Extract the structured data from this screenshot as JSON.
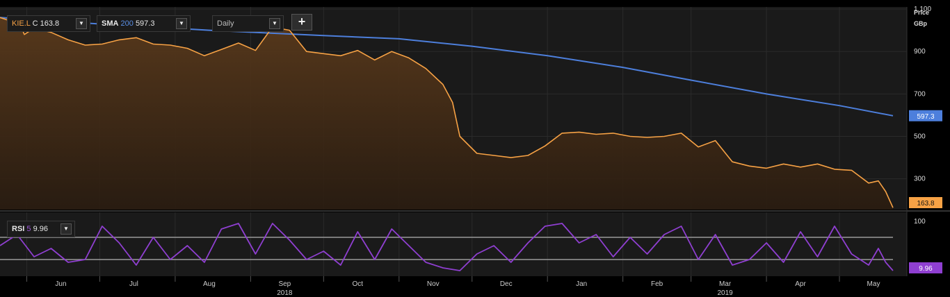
{
  "toolbar": {
    "symbol_ticker": "KIE.L",
    "symbol_close_prefix": "C",
    "symbol_close_value": "163.8",
    "sma_label": "SMA",
    "sma_period": "200",
    "sma_value": "597.3",
    "interval": "Daily",
    "add_label": "+"
  },
  "rsi_panel": {
    "label": "RSI",
    "period": "5",
    "value": "9.96"
  },
  "axis": {
    "price_title_1": "Price",
    "price_title_2": "GBp"
  },
  "colors": {
    "price_line": "#f7a245",
    "sma_line": "#4d7fdc",
    "rsi_line": "#8f3fd1",
    "background": "#1a1a1a"
  },
  "chart_data": [
    {
      "type": "line",
      "title": "",
      "ylabel": "Price GBp",
      "ylim": [
        155,
        1110
      ],
      "y_ticks": [
        1100,
        900,
        700,
        500,
        300
      ],
      "y_tick_labels": [
        "1,100",
        "900",
        "700",
        "500",
        "300"
      ],
      "x_ticks": [
        "Jun",
        "Jul",
        "Aug",
        "Sep",
        "Oct",
        "Nov",
        "Dec",
        "Jan",
        "Feb",
        "Mar",
        "Apr",
        "May"
      ],
      "x_year_labels": [
        {
          "month": "Sep",
          "year": "2018"
        },
        {
          "month": "Mar",
          "year": "2019"
        }
      ],
      "x_domain": [
        "2018-05-21",
        "2019-05-23"
      ],
      "grid": true,
      "fill_under_price": true,
      "series": [
        {
          "name": "KIE.L",
          "last_label": "163.8",
          "points": [
            [
              "2018-05-21",
              1060
            ],
            [
              "2018-05-25",
              1045
            ],
            [
              "2018-05-28",
              1062
            ],
            [
              "2018-05-31",
              980
            ],
            [
              "2018-06-04",
              1010
            ],
            [
              "2018-06-11",
              990
            ],
            [
              "2018-06-18",
              955
            ],
            [
              "2018-06-25",
              930
            ],
            [
              "2018-07-02",
              935
            ],
            [
              "2018-07-09",
              955
            ],
            [
              "2018-07-16",
              965
            ],
            [
              "2018-07-23",
              935
            ],
            [
              "2018-07-30",
              930
            ],
            [
              "2018-08-06",
              915
            ],
            [
              "2018-08-13",
              880
            ],
            [
              "2018-08-20",
              910
            ],
            [
              "2018-08-27",
              940
            ],
            [
              "2018-09-03",
              905
            ],
            [
              "2018-09-10",
              1015
            ],
            [
              "2018-09-17",
              1000
            ],
            [
              "2018-09-24",
              900
            ],
            [
              "2018-10-01",
              890
            ],
            [
              "2018-10-08",
              880
            ],
            [
              "2018-10-15",
              905
            ],
            [
              "2018-10-22",
              860
            ],
            [
              "2018-10-29",
              900
            ],
            [
              "2018-11-05",
              870
            ],
            [
              "2018-11-12",
              820
            ],
            [
              "2018-11-19",
              745
            ],
            [
              "2018-11-23",
              660
            ],
            [
              "2018-11-26",
              500
            ],
            [
              "2018-12-03",
              420
            ],
            [
              "2018-12-10",
              410
            ],
            [
              "2018-12-17",
              400
            ],
            [
              "2018-12-24",
              410
            ],
            [
              "2018-12-31",
              455
            ],
            [
              "2019-01-07",
              515
            ],
            [
              "2019-01-14",
              520
            ],
            [
              "2019-01-21",
              510
            ],
            [
              "2019-01-28",
              515
            ],
            [
              "2019-02-04",
              500
            ],
            [
              "2019-02-11",
              495
            ],
            [
              "2019-02-18",
              500
            ],
            [
              "2019-02-25",
              515
            ],
            [
              "2019-03-04",
              450
            ],
            [
              "2019-03-11",
              480
            ],
            [
              "2019-03-18",
              380
            ],
            [
              "2019-03-25",
              360
            ],
            [
              "2019-04-01",
              350
            ],
            [
              "2019-04-08",
              370
            ],
            [
              "2019-04-15",
              355
            ],
            [
              "2019-04-22",
              370
            ],
            [
              "2019-04-29",
              345
            ],
            [
              "2019-05-06",
              340
            ],
            [
              "2019-05-13",
              280
            ],
            [
              "2019-05-17",
              290
            ],
            [
              "2019-05-20",
              240
            ],
            [
              "2019-05-23",
              163.8
            ]
          ]
        },
        {
          "name": "SMA 200",
          "last_label": "597.3",
          "points": [
            [
              "2018-05-21",
              1060
            ],
            [
              "2018-07-01",
              1030
            ],
            [
              "2018-08-15",
              1000
            ],
            [
              "2018-10-01",
              975
            ],
            [
              "2018-11-01",
              960
            ],
            [
              "2018-12-01",
              925
            ],
            [
              "2019-01-01",
              880
            ],
            [
              "2019-02-01",
              825
            ],
            [
              "2019-03-01",
              765
            ],
            [
              "2019-04-01",
              700
            ],
            [
              "2019-05-01",
              645
            ],
            [
              "2019-05-23",
              597.3
            ]
          ]
        }
      ]
    },
    {
      "type": "line",
      "title": "",
      "ylabel": "RSI",
      "ylim": [
        0,
        115
      ],
      "y_ticks": [
        100
      ],
      "y_tick_labels": [
        "100"
      ],
      "reference_lines": [
        70,
        30
      ],
      "series": [
        {
          "name": "RSI 5",
          "last_label": "9.96",
          "points": [
            [
              "2018-05-21",
              55
            ],
            [
              "2018-05-28",
              75
            ],
            [
              "2018-06-04",
              35
            ],
            [
              "2018-06-11",
              50
            ],
            [
              "2018-06-18",
              25
            ],
            [
              "2018-06-25",
              30
            ],
            [
              "2018-07-02",
              90
            ],
            [
              "2018-07-09",
              60
            ],
            [
              "2018-07-16",
              20
            ],
            [
              "2018-07-23",
              70
            ],
            [
              "2018-07-30",
              30
            ],
            [
              "2018-08-06",
              55
            ],
            [
              "2018-08-13",
              25
            ],
            [
              "2018-08-20",
              85
            ],
            [
              "2018-08-27",
              95
            ],
            [
              "2018-09-03",
              40
            ],
            [
              "2018-09-10",
              95
            ],
            [
              "2018-09-17",
              65
            ],
            [
              "2018-09-24",
              30
            ],
            [
              "2018-10-01",
              45
            ],
            [
              "2018-10-08",
              20
            ],
            [
              "2018-10-15",
              80
            ],
            [
              "2018-10-22",
              30
            ],
            [
              "2018-10-29",
              85
            ],
            [
              "2018-11-05",
              55
            ],
            [
              "2018-11-12",
              25
            ],
            [
              "2018-11-19",
              15
            ],
            [
              "2018-11-26",
              10
            ],
            [
              "2018-12-03",
              40
            ],
            [
              "2018-12-10",
              55
            ],
            [
              "2018-12-17",
              25
            ],
            [
              "2018-12-24",
              60
            ],
            [
              "2018-12-31",
              90
            ],
            [
              "2019-01-07",
              95
            ],
            [
              "2019-01-14",
              60
            ],
            [
              "2019-01-21",
              75
            ],
            [
              "2019-01-28",
              35
            ],
            [
              "2019-02-04",
              70
            ],
            [
              "2019-02-11",
              40
            ],
            [
              "2019-02-18",
              75
            ],
            [
              "2019-02-25",
              90
            ],
            [
              "2019-03-04",
              30
            ],
            [
              "2019-03-11",
              75
            ],
            [
              "2019-03-18",
              20
            ],
            [
              "2019-03-25",
              30
            ],
            [
              "2019-04-01",
              60
            ],
            [
              "2019-04-08",
              25
            ],
            [
              "2019-04-15",
              80
            ],
            [
              "2019-04-22",
              35
            ],
            [
              "2019-04-29",
              90
            ],
            [
              "2019-05-06",
              40
            ],
            [
              "2019-05-13",
              20
            ],
            [
              "2019-05-17",
              50
            ],
            [
              "2019-05-20",
              25
            ],
            [
              "2019-05-23",
              9.96
            ]
          ]
        }
      ]
    }
  ]
}
